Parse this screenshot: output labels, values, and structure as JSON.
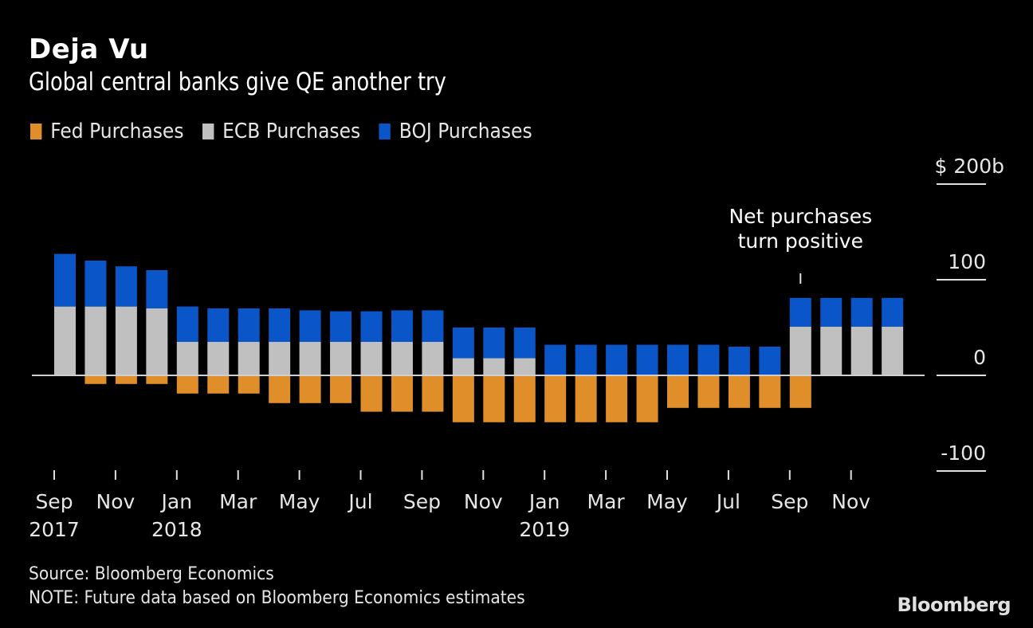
{
  "header": {
    "title": "Deja Vu",
    "subtitle": "Global central banks give QE another try"
  },
  "legend": [
    {
      "label": "Fed Purchases",
      "color": "#e08e2a"
    },
    {
      "label": "ECB Purchases",
      "color": "#c0c0c0"
    },
    {
      "label": "BOJ Purchases",
      "color": "#0a55c8"
    }
  ],
  "footer": {
    "source": "Source: Bloomberg Economics",
    "note": "NOTE: Future data based on Bloomberg Economics estimates",
    "brand": "Bloomberg"
  },
  "chart_data": {
    "type": "bar",
    "stacked": true,
    "title": "Deja Vu",
    "subtitle": "Global central banks give QE another try",
    "ylabel": "$ billions",
    "ylim": [
      -100,
      200
    ],
    "yticks": [
      {
        "value": 200,
        "label": "$ 200b"
      },
      {
        "value": 100,
        "label": "100"
      },
      {
        "value": 0,
        "label": "0"
      },
      {
        "value": -100,
        "label": "-100"
      }
    ],
    "categories": [
      "Sep 2017",
      "Oct 2017",
      "Nov 2017",
      "Dec 2017",
      "Jan 2018",
      "Feb 2018",
      "Mar 2018",
      "Apr 2018",
      "May 2018",
      "Jun 2018",
      "Jul 2018",
      "Aug 2018",
      "Sep 2018",
      "Oct 2018",
      "Nov 2018",
      "Dec 2018",
      "Jan 2019",
      "Feb 2019",
      "Mar 2019",
      "Apr 2019",
      "May 2019",
      "Jun 2019",
      "Jul 2019",
      "Aug 2019",
      "Sep 2019",
      "Oct 2019",
      "Nov 2019",
      "Dec 2019"
    ],
    "xticks": [
      {
        "index": 0,
        "month": "Sep",
        "year": "2017"
      },
      {
        "index": 2,
        "month": "Nov",
        "year": ""
      },
      {
        "index": 4,
        "month": "Jan",
        "year": "2018"
      },
      {
        "index": 6,
        "month": "Mar",
        "year": ""
      },
      {
        "index": 8,
        "month": "May",
        "year": ""
      },
      {
        "index": 10,
        "month": "Jul",
        "year": ""
      },
      {
        "index": 12,
        "month": "Sep",
        "year": ""
      },
      {
        "index": 14,
        "month": "Nov",
        "year": ""
      },
      {
        "index": 16,
        "month": "Jan",
        "year": "2019"
      },
      {
        "index": 18,
        "month": "Mar",
        "year": ""
      },
      {
        "index": 20,
        "month": "May",
        "year": ""
      },
      {
        "index": 22,
        "month": "Jul",
        "year": ""
      },
      {
        "index": 24,
        "month": "Sep",
        "year": ""
      },
      {
        "index": 26,
        "month": "Nov",
        "year": ""
      }
    ],
    "series": [
      {
        "name": "Fed Purchases",
        "color": "#e08e2a",
        "values": [
          0,
          -9,
          -9,
          -9,
          -19,
          -19,
          -19,
          -29,
          -29,
          -29,
          -38,
          -38,
          -38,
          -49,
          -49,
          -49,
          -49,
          -49,
          -49,
          -49,
          -34,
          -34,
          -34,
          -34,
          -34,
          0,
          0,
          0
        ]
      },
      {
        "name": "ECB Purchases",
        "color": "#c0c0c0",
        "values": [
          72,
          72,
          72,
          70,
          35,
          35,
          35,
          35,
          35,
          35,
          35,
          35,
          35,
          18,
          18,
          18,
          0,
          0,
          0,
          0,
          0,
          0,
          0,
          0,
          51,
          51,
          51,
          51
        ]
      },
      {
        "name": "BOJ Purchases",
        "color": "#0a55c8",
        "values": [
          55,
          48,
          42,
          40,
          37,
          35,
          35,
          35,
          33,
          32,
          32,
          33,
          33,
          32,
          32,
          32,
          32,
          32,
          32,
          32,
          32,
          32,
          30,
          30,
          30,
          30,
          30,
          30
        ]
      }
    ],
    "annotations": [
      {
        "text_lines": [
          "Net purchases",
          "turn positive"
        ],
        "category_index": 24
      }
    ],
    "grid": false,
    "legend_position": "top-left"
  }
}
